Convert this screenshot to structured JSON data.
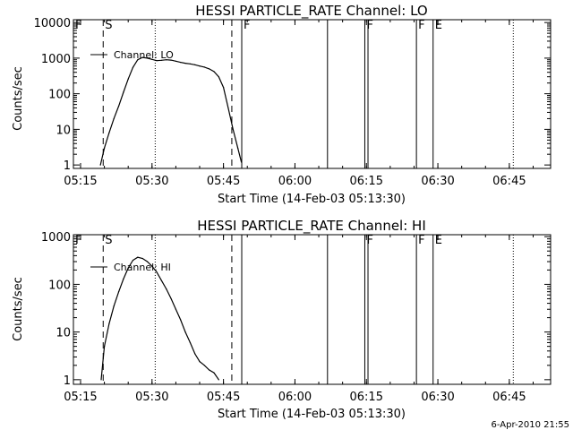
{
  "chart_data": [
    {
      "type": "line",
      "title": "HESSI PARTICLE_RATE Channel: LO",
      "xlabel": "Start Time (14-Feb-03 05:13:30)",
      "ylabel": "Counts/sec",
      "yscale": "log",
      "xlim": [
        "05:13:30",
        "06:53:40"
      ],
      "ylim": [
        0.8,
        12000
      ],
      "x_ticks": [
        "05:15",
        "05:30",
        "05:45",
        "06:00",
        "06:15",
        "06:30",
        "06:45"
      ],
      "y_ticks": [
        "1",
        "10",
        "100",
        "1000",
        "10000"
      ],
      "y_tick_values": [
        1,
        10,
        100,
        1000,
        10000
      ],
      "legend": {
        "position": "top-left",
        "label": "Channel: LO"
      },
      "series": [
        {
          "name": "Channel: LO",
          "x": [
            "05:19:10",
            "05:20:00",
            "05:21:00",
            "05:22:00",
            "05:23:00",
            "05:24:00",
            "05:25:00",
            "05:26:00",
            "05:27:00",
            "05:28:00",
            "05:29:00",
            "05:30:00",
            "05:31:00",
            "05:32:00",
            "05:33:00",
            "05:34:00",
            "05:35:00",
            "05:36:00",
            "05:37:00",
            "05:38:00",
            "05:39:00",
            "05:40:00",
            "05:41:00",
            "05:42:00",
            "05:43:00",
            "05:44:00",
            "05:45:00",
            "05:46:00",
            "05:47:00",
            "05:48:00",
            "05:48:45"
          ],
          "y": [
            1,
            3,
            8,
            20,
            45,
            110,
            260,
            550,
            900,
            1050,
            1000,
            920,
            850,
            870,
            900,
            880,
            820,
            760,
            720,
            690,
            650,
            600,
            560,
            500,
            420,
            300,
            150,
            40,
            10,
            3,
            1.2
          ]
        }
      ],
      "markers": [
        {
          "label": "F",
          "time": "05:13:30",
          "style": "solid"
        },
        {
          "label": "S",
          "time": "05:19:45",
          "style": "dashed"
        },
        {
          "time": "05:30:40",
          "style": "dotted"
        },
        {
          "time": "05:46:45",
          "style": "dashed"
        },
        {
          "label": "F",
          "time": "05:48:50",
          "style": "solid"
        },
        {
          "time": "06:06:50",
          "style": "solid"
        },
        {
          "label": "F",
          "time": "06:14:40",
          "style": "solid"
        },
        {
          "time": "06:15:20",
          "style": "solid"
        },
        {
          "label": "F",
          "time": "06:25:30",
          "style": "solid"
        },
        {
          "label": "E",
          "time": "06:29:00",
          "style": "solid"
        },
        {
          "time": "06:45:50",
          "style": "dotted"
        }
      ]
    },
    {
      "type": "line",
      "title": "HESSI PARTICLE_RATE Channel: HI",
      "xlabel": "Start Time (14-Feb-03 05:13:30)",
      "ylabel": "Counts/sec",
      "yscale": "log",
      "xlim": [
        "05:13:30",
        "06:53:40"
      ],
      "ylim": [
        0.8,
        1100
      ],
      "x_ticks": [
        "05:15",
        "05:30",
        "05:45",
        "06:00",
        "06:15",
        "06:30",
        "06:45"
      ],
      "y_ticks": [
        "1",
        "10",
        "100",
        "1000"
      ],
      "y_tick_values": [
        1,
        10,
        100,
        1000
      ],
      "legend": {
        "position": "top-left",
        "label": "Channel: HI"
      },
      "series": [
        {
          "name": "Channel: HI",
          "x": [
            "05:19:20",
            "05:20:00",
            "05:21:00",
            "05:22:00",
            "05:23:00",
            "05:24:00",
            "05:25:00",
            "05:26:00",
            "05:27:00",
            "05:28:00",
            "05:29:00",
            "05:30:00",
            "05:31:00",
            "05:32:00",
            "05:33:00",
            "05:34:00",
            "05:35:00",
            "05:36:00",
            "05:37:00",
            "05:38:00",
            "05:39:00",
            "05:40:00",
            "05:41:00",
            "05:42:00",
            "05:43:00",
            "05:44:00"
          ],
          "y": [
            1,
            5,
            15,
            35,
            70,
            130,
            220,
            320,
            370,
            350,
            300,
            240,
            180,
            120,
            80,
            50,
            30,
            18,
            10,
            6,
            3.5,
            2.4,
            2.0,
            1.6,
            1.4,
            1
          ]
        }
      ],
      "markers": [
        {
          "label": "F",
          "time": "05:13:30",
          "style": "solid"
        },
        {
          "label": "S",
          "time": "05:19:45",
          "style": "dashed"
        },
        {
          "time": "05:30:40",
          "style": "dotted"
        },
        {
          "time": "05:46:45",
          "style": "dashed"
        },
        {
          "time": "05:48:50",
          "style": "solid"
        },
        {
          "time": "06:06:50",
          "style": "solid"
        },
        {
          "label": "F",
          "time": "06:14:40",
          "style": "solid"
        },
        {
          "time": "06:15:20",
          "style": "solid"
        },
        {
          "label": "F",
          "time": "06:25:30",
          "style": "solid"
        },
        {
          "label": "E",
          "time": "06:29:00",
          "style": "solid"
        },
        {
          "time": "06:45:50",
          "style": "dotted"
        }
      ]
    }
  ],
  "footer": {
    "timestamp": "6-Apr-2010 21:55"
  }
}
